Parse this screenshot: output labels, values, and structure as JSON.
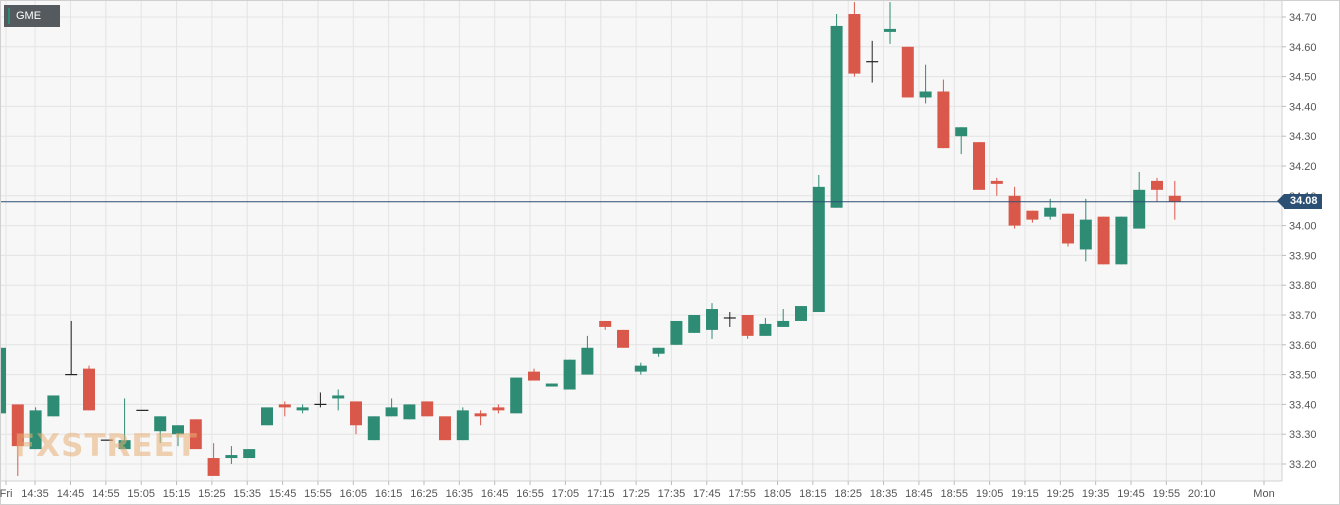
{
  "symbol": "GME",
  "watermark": "FXSTREET",
  "colors": {
    "up": "#2e8b74",
    "down": "#d9584a",
    "background": "#f7f7f7",
    "grid": "#e4e4e4",
    "price_line": "#2c4f74",
    "axis_text": "#555555"
  },
  "chart_data": {
    "type": "candlestick",
    "interval_minutes": 5,
    "grid": true,
    "ylim": [
      33.15,
      34.75
    ],
    "y_ticks": [
      33.2,
      33.3,
      33.4,
      33.5,
      33.6,
      33.7,
      33.8,
      33.9,
      34.0,
      34.1,
      34.2,
      34.3,
      34.4,
      34.5,
      34.6,
      34.7
    ],
    "x_tick_labels": [
      "Fri",
      "14:35",
      "14:45",
      "14:55",
      "15:05",
      "15:15",
      "15:25",
      "15:35",
      "15:45",
      "15:55",
      "16:05",
      "16:15",
      "16:25",
      "16:35",
      "16:45",
      "16:55",
      "17:05",
      "17:15",
      "17:25",
      "17:35",
      "17:45",
      "17:55",
      "18:05",
      "18:15",
      "18:25",
      "18:35",
      "18:45",
      "18:55",
      "19:05",
      "19:15",
      "19:25",
      "19:35",
      "19:45",
      "19:55",
      "20:10",
      "Mon"
    ],
    "last_price": "34.08",
    "candles": [
      {
        "time": "14:30",
        "open": 33.37,
        "high": 33.59,
        "low": 33.36,
        "close": 33.59
      },
      {
        "time": "14:35",
        "open": 33.4,
        "high": 33.4,
        "low": 33.16,
        "close": 33.26
      },
      {
        "time": "14:40",
        "open": 33.25,
        "high": 33.39,
        "low": 33.25,
        "close": 33.38
      },
      {
        "time": "14:45",
        "open": 33.36,
        "high": 33.43,
        "low": 33.36,
        "close": 33.43
      },
      {
        "time": "14:50",
        "open": 33.5,
        "high": 33.68,
        "low": 33.5,
        "close": 33.5
      },
      {
        "time": "14:55",
        "open": 33.52,
        "high": 33.53,
        "low": 33.38,
        "close": 33.38
      },
      {
        "time": "15:00",
        "open": 33.28,
        "high": 33.28,
        "low": 33.28,
        "close": 33.28
      },
      {
        "time": "15:05",
        "open": 33.25,
        "high": 33.42,
        "low": 33.25,
        "close": 33.28
      },
      {
        "time": "15:10",
        "open": 33.38,
        "high": 33.38,
        "low": 33.38,
        "close": 33.38
      },
      {
        "time": "15:15",
        "open": 33.31,
        "high": 33.36,
        "low": 33.27,
        "close": 33.36
      },
      {
        "time": "15:20",
        "open": 33.3,
        "high": 33.33,
        "low": 33.26,
        "close": 33.33
      },
      {
        "time": "15:25",
        "open": 33.35,
        "high": 33.35,
        "low": 33.25,
        "close": 33.25
      },
      {
        "time": "15:30",
        "open": 33.22,
        "high": 33.27,
        "low": 33.16,
        "close": 33.16
      },
      {
        "time": "15:35",
        "open": 33.22,
        "high": 33.26,
        "low": 33.2,
        "close": 33.23
      },
      {
        "time": "15:40",
        "open": 33.22,
        "high": 33.25,
        "low": 33.22,
        "close": 33.25
      },
      {
        "time": "15:45",
        "open": 33.33,
        "high": 33.39,
        "low": 33.33,
        "close": 33.39
      },
      {
        "time": "15:50",
        "open": 33.4,
        "high": 33.41,
        "low": 33.36,
        "close": 33.39
      },
      {
        "time": "15:55",
        "open": 33.38,
        "high": 33.4,
        "low": 33.37,
        "close": 33.39
      },
      {
        "time": "16:00",
        "open": 33.4,
        "high": 33.44,
        "low": 33.39,
        "close": 33.4
      },
      {
        "time": "16:05",
        "open": 33.42,
        "high": 33.45,
        "low": 33.38,
        "close": 33.43
      },
      {
        "time": "16:10",
        "open": 33.41,
        "high": 33.41,
        "low": 33.3,
        "close": 33.33
      },
      {
        "time": "16:15",
        "open": 33.28,
        "high": 33.36,
        "low": 33.28,
        "close": 33.36
      },
      {
        "time": "16:20",
        "open": 33.36,
        "high": 33.42,
        "low": 33.36,
        "close": 33.39
      },
      {
        "time": "16:25",
        "open": 33.35,
        "high": 33.4,
        "low": 33.35,
        "close": 33.4
      },
      {
        "time": "16:30",
        "open": 33.41,
        "high": 33.41,
        "low": 33.36,
        "close": 33.36
      },
      {
        "time": "16:35",
        "open": 33.36,
        "high": 33.36,
        "low": 33.28,
        "close": 33.28
      },
      {
        "time": "16:40",
        "open": 33.28,
        "high": 33.39,
        "low": 33.28,
        "close": 33.38
      },
      {
        "time": "16:45",
        "open": 33.37,
        "high": 33.38,
        "low": 33.33,
        "close": 33.36
      },
      {
        "time": "16:50",
        "open": 33.39,
        "high": 33.4,
        "low": 33.37,
        "close": 33.38
      },
      {
        "time": "16:55",
        "open": 33.37,
        "high": 33.49,
        "low": 33.37,
        "close": 33.49
      },
      {
        "time": "17:00",
        "open": 33.51,
        "high": 33.52,
        "low": 33.48,
        "close": 33.48
      },
      {
        "time": "17:05",
        "open": 33.46,
        "high": 33.47,
        "low": 33.46,
        "close": 33.47
      },
      {
        "time": "17:10",
        "open": 33.45,
        "high": 33.55,
        "low": 33.45,
        "close": 33.55
      },
      {
        "time": "17:15",
        "open": 33.5,
        "high": 33.63,
        "low": 33.5,
        "close": 33.59
      },
      {
        "time": "17:20",
        "open": 33.68,
        "high": 33.68,
        "low": 33.65,
        "close": 33.66
      },
      {
        "time": "17:25",
        "open": 33.65,
        "high": 33.65,
        "low": 33.59,
        "close": 33.59
      },
      {
        "time": "17:30",
        "open": 33.51,
        "high": 33.54,
        "low": 33.5,
        "close": 33.53
      },
      {
        "time": "17:35",
        "open": 33.57,
        "high": 33.59,
        "low": 33.56,
        "close": 33.59
      },
      {
        "time": "17:40",
        "open": 33.6,
        "high": 33.68,
        "low": 33.6,
        "close": 33.68
      },
      {
        "time": "17:45",
        "open": 33.64,
        "high": 33.7,
        "low": 33.64,
        "close": 33.7
      },
      {
        "time": "17:50",
        "open": 33.65,
        "high": 33.74,
        "low": 33.62,
        "close": 33.72
      },
      {
        "time": "17:55",
        "open": 33.69,
        "high": 33.71,
        "low": 33.66,
        "close": 33.69
      },
      {
        "time": "18:00",
        "open": 33.7,
        "high": 33.7,
        "low": 33.62,
        "close": 33.63
      },
      {
        "time": "18:05",
        "open": 33.63,
        "high": 33.69,
        "low": 33.63,
        "close": 33.67
      },
      {
        "time": "18:10",
        "open": 33.66,
        "high": 33.72,
        "low": 33.66,
        "close": 33.68
      },
      {
        "time": "18:15",
        "open": 33.68,
        "high": 33.73,
        "low": 33.68,
        "close": 33.73
      },
      {
        "time": "18:20",
        "open": 33.71,
        "high": 34.17,
        "low": 33.71,
        "close": 34.13
      },
      {
        "time": "18:25",
        "open": 34.06,
        "high": 34.71,
        "low": 34.06,
        "close": 34.67
      },
      {
        "time": "18:30",
        "open": 34.71,
        "high": 34.75,
        "low": 34.5,
        "close": 34.51
      },
      {
        "time": "18:35",
        "open": 34.55,
        "high": 34.62,
        "low": 34.48,
        "close": 34.55
      },
      {
        "time": "18:40",
        "open": 34.65,
        "high": 34.75,
        "low": 34.61,
        "close": 34.66
      },
      {
        "time": "18:45",
        "open": 34.6,
        "high": 34.6,
        "low": 34.43,
        "close": 34.43
      },
      {
        "time": "18:50",
        "open": 34.43,
        "high": 34.54,
        "low": 34.41,
        "close": 34.45
      },
      {
        "time": "18:55",
        "open": 34.45,
        "high": 34.49,
        "low": 34.26,
        "close": 34.26
      },
      {
        "time": "19:00",
        "open": 34.3,
        "high": 34.33,
        "low": 34.24,
        "close": 34.33
      },
      {
        "time": "19:05",
        "open": 34.28,
        "high": 34.28,
        "low": 34.12,
        "close": 34.12
      },
      {
        "time": "19:10",
        "open": 34.15,
        "high": 34.16,
        "low": 34.1,
        "close": 34.14
      },
      {
        "time": "19:15",
        "open": 34.1,
        "high": 34.13,
        "low": 33.99,
        "close": 34.0
      },
      {
        "time": "19:20",
        "open": 34.05,
        "high": 34.05,
        "low": 34.01,
        "close": 34.02
      },
      {
        "time": "19:25",
        "open": 34.03,
        "high": 34.09,
        "low": 34.02,
        "close": 34.06
      },
      {
        "time": "19:30",
        "open": 34.04,
        "high": 34.04,
        "low": 33.93,
        "close": 33.94
      },
      {
        "time": "19:35",
        "open": 33.92,
        "high": 34.09,
        "low": 33.88,
        "close": 34.02
      },
      {
        "time": "19:40",
        "open": 34.03,
        "high": 34.03,
        "low": 33.87,
        "close": 33.87
      },
      {
        "time": "19:45",
        "open": 33.87,
        "high": 34.03,
        "low": 33.87,
        "close": 34.03
      },
      {
        "time": "19:50",
        "open": 33.99,
        "high": 34.18,
        "low": 33.99,
        "close": 34.12
      },
      {
        "time": "19:55",
        "open": 34.15,
        "high": 34.16,
        "low": 34.08,
        "close": 34.12
      },
      {
        "time": "20:00",
        "open": 34.1,
        "high": 34.15,
        "low": 34.02,
        "close": 34.08
      }
    ]
  }
}
